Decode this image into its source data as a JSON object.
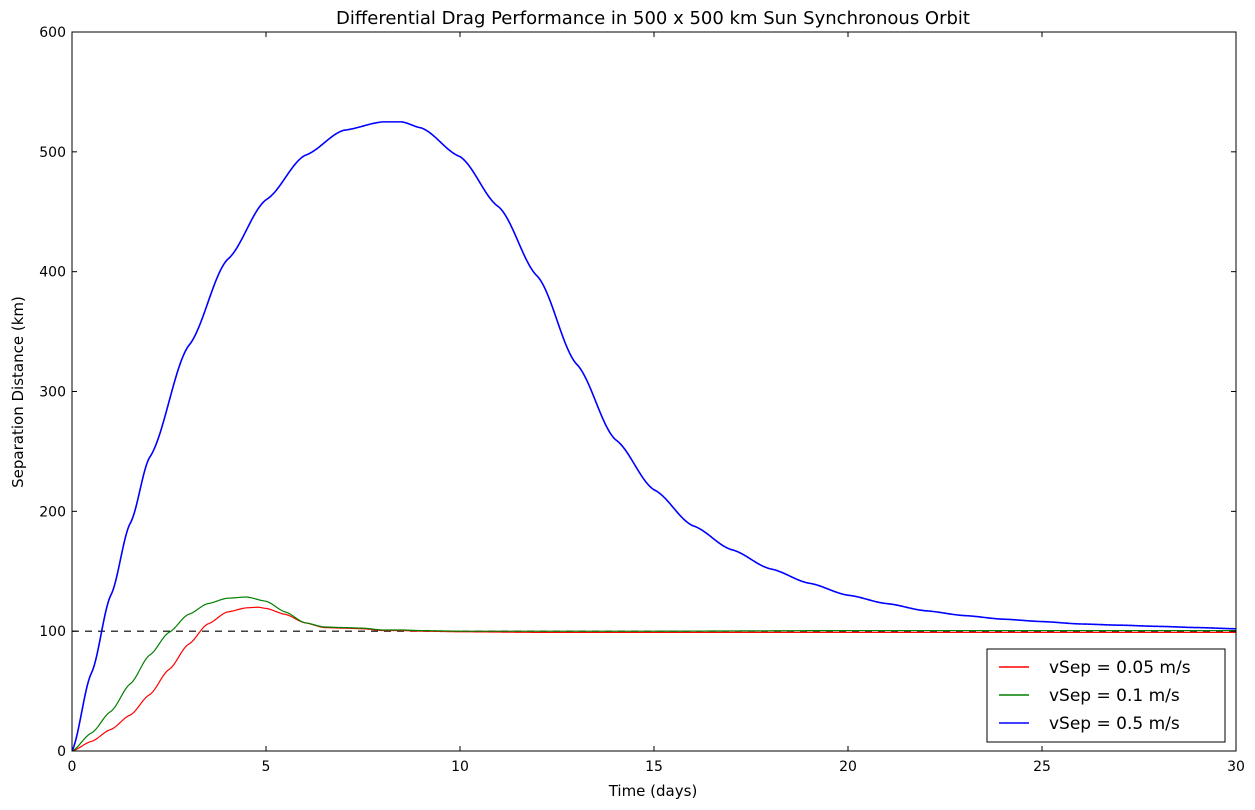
{
  "chart_data": {
    "type": "line",
    "title": "Differential Drag Performance in 500 x 500 km Sun Synchronous Orbit",
    "xlabel": "Time (days)",
    "ylabel": "Separation Distance (km)",
    "xlim": [
      0,
      30
    ],
    "ylim": [
      0,
      600
    ],
    "xticks": [
      0,
      5,
      10,
      15,
      20,
      25,
      30
    ],
    "yticks": [
      0,
      100,
      200,
      300,
      400,
      500,
      600
    ],
    "grid": false,
    "legend_position": "bottom-right",
    "reference_line": {
      "y": 100,
      "style": "dashed",
      "color": "#000000"
    },
    "series": [
      {
        "name": "vSep = 0.05 m/s",
        "color": "#ff0000",
        "x": [
          0,
          0.5,
          1,
          1.5,
          2,
          2.5,
          3,
          3.5,
          4,
          4.5,
          4.8,
          5,
          5.5,
          6,
          6.5,
          7,
          7.5,
          8,
          8.5,
          9,
          10,
          12,
          15,
          20,
          25,
          30
        ],
        "y": [
          0,
          8,
          18,
          30,
          47,
          68,
          89,
          106,
          116,
          119.5,
          120,
          119,
          114,
          107,
          103,
          102.5,
          102,
          100.5,
          100.5,
          100,
          99.5,
          99,
          99,
          99,
          99,
          99
        ]
      },
      {
        "name": "vSep = 0.1 m/s",
        "color": "#008000",
        "x": [
          0,
          0.5,
          1,
          1.5,
          2,
          2.5,
          3,
          3.5,
          4,
          4.5,
          5,
          5.5,
          6,
          6.5,
          7,
          7.5,
          8,
          8.5,
          9,
          10,
          12,
          15,
          20,
          25,
          30
        ],
        "y": [
          0,
          15,
          33,
          56,
          80,
          99,
          114,
          123,
          127.5,
          128.5,
          125,
          116,
          107,
          103.5,
          103,
          102.5,
          101,
          101,
          100.5,
          100,
          100,
          100,
          100.5,
          100.5,
          100.5
        ]
      },
      {
        "name": "vSep = 0.5 m/s",
        "color": "#0000ff",
        "x": [
          0,
          0.5,
          1,
          1.5,
          2,
          3,
          4,
          5,
          6,
          7,
          8,
          8.5,
          9,
          10,
          11,
          12,
          13,
          14,
          15,
          16,
          17,
          18,
          19,
          20,
          21,
          22,
          23,
          24,
          25,
          26,
          27,
          28,
          29,
          30
        ],
        "y": [
          0,
          65,
          130,
          190,
          245,
          338,
          410,
          460,
          497,
          518,
          525,
          525,
          520,
          496,
          454,
          396,
          323,
          260,
          218,
          188,
          168,
          152,
          140,
          130,
          123,
          117,
          113,
          110,
          108,
          106,
          105,
          104,
          103,
          102
        ]
      }
    ]
  }
}
